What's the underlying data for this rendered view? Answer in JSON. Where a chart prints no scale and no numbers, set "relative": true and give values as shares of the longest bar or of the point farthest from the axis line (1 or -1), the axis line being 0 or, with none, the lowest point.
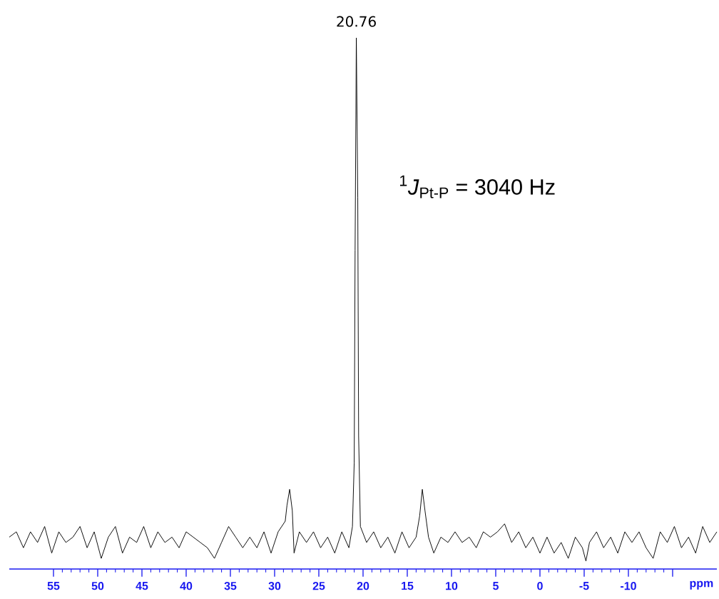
{
  "chart_data": {
    "type": "line",
    "relative": true,
    "xlabel": "ppm",
    "xlim": [
      60,
      -20
    ],
    "xticks": [
      55,
      50,
      45,
      40,
      35,
      30,
      25,
      20,
      15,
      10,
      5,
      0,
      -5,
      -10,
      {
        "value": -15,
        "label": null
      }
    ],
    "x": [
      60,
      59.2,
      58.4,
      57.6,
      56.8,
      56,
      55.2,
      54.4,
      53.6,
      52.8,
      52,
      51.2,
      50.4,
      49.6,
      48.8,
      48,
      47.2,
      46.4,
      45.6,
      44.8,
      44,
      43.2,
      42.4,
      41.6,
      40.8,
      40,
      39.2,
      38.4,
      37.6,
      36.8,
      36,
      35.2,
      34.4,
      33.6,
      32.8,
      32,
      31.2,
      30.4,
      29.6,
      28.8,
      28.6,
      28.3,
      28,
      27.8,
      27.2,
      26.4,
      25.6,
      24.8,
      24,
      23.2,
      22.4,
      21.6,
      21.2,
      21,
      20.9,
      20.76,
      20.6,
      20.5,
      20.3,
      19.6,
      18.8,
      18,
      17.2,
      16.4,
      15.6,
      14.8,
      14,
      13.6,
      13.3,
      13,
      12.6,
      12,
      11.2,
      10.4,
      9.6,
      8.8,
      8,
      7.2,
      6.4,
      5.6,
      4.8,
      4,
      3.2,
      2.4,
      1.6,
      0.8,
      0,
      -0.8,
      -1.6,
      -2.4,
      -3.2,
      -4,
      -4.8,
      -5.2,
      -5.6,
      -6.4,
      -7.2,
      -8,
      -8.8,
      -9.6,
      -10.4,
      -11.2,
      -12,
      -12.8,
      -13.6,
      -14.4,
      -15.2,
      -16,
      -16.8,
      -17.6,
      -18.4,
      -19.2,
      -20
    ],
    "values": [
      0.06,
      0.07,
      0.04,
      0.07,
      0.05,
      0.08,
      0.03,
      0.07,
      0.05,
      0.06,
      0.08,
      0.04,
      0.07,
      0.02,
      0.06,
      0.08,
      0.03,
      0.06,
      0.05,
      0.08,
      0.04,
      0.07,
      0.05,
      0.06,
      0.04,
      0.07,
      0.06,
      0.05,
      0.04,
      0.02,
      0.05,
      0.08,
      0.06,
      0.04,
      0.06,
      0.04,
      0.07,
      0.03,
      0.07,
      0.09,
      0.12,
      0.15,
      0.11,
      0.03,
      0.07,
      0.05,
      0.07,
      0.04,
      0.06,
      0.03,
      0.07,
      0.04,
      0.08,
      0.2,
      0.6,
      1,
      0.7,
      0.25,
      0.08,
      0.05,
      0.07,
      0.04,
      0.06,
      0.03,
      0.07,
      0.04,
      0.06,
      0.1,
      0.15,
      0.11,
      0.06,
      0.03,
      0.06,
      0.05,
      0.07,
      0.05,
      0.06,
      0.04,
      0.07,
      0.06,
      0.07,
      0.085,
      0.05,
      0.07,
      0.04,
      0.06,
      0.03,
      0.06,
      0.03,
      0.05,
      0.02,
      0.06,
      0.04,
      0.015,
      0.05,
      0.07,
      0.04,
      0.06,
      0.03,
      0.07,
      0.05,
      0.07,
      0.04,
      0.02,
      0.07,
      0.05,
      0.08,
      0.04,
      0.06,
      0.03,
      0.08,
      0.05,
      0.07
    ],
    "color": "#000000",
    "annotations": [
      {
        "text": "20.76",
        "x": 20.76,
        "y": 1
      },
      "$^{1}$*J*$_{Pt-P}$ = 3040 Hz"
    ]
  }
}
